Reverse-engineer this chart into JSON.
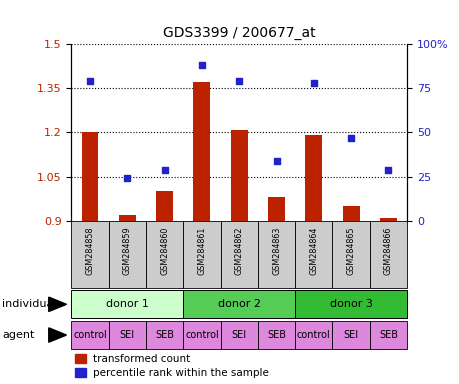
{
  "title": "GDS3399 / 200677_at",
  "samples": [
    "GSM284858",
    "GSM284859",
    "GSM284860",
    "GSM284861",
    "GSM284862",
    "GSM284863",
    "GSM284864",
    "GSM284865",
    "GSM284866"
  ],
  "transformed_count": [
    1.2,
    0.92,
    1.0,
    1.37,
    1.21,
    0.98,
    1.19,
    0.95,
    0.91
  ],
  "percentile_rank": [
    79,
    24,
    29,
    88,
    79,
    34,
    78,
    47,
    29
  ],
  "ylim_left": [
    0.9,
    1.5
  ],
  "ylim_right": [
    0,
    100
  ],
  "yticks_left": [
    0.9,
    1.05,
    1.2,
    1.35,
    1.5
  ],
  "yticks_right": [
    0,
    25,
    50,
    75,
    100
  ],
  "ytick_labels_right": [
    "0",
    "25",
    "50",
    "75",
    "100%"
  ],
  "bar_color": "#bb2200",
  "dot_color": "#2222cc",
  "bar_bottom": 0.9,
  "donors": [
    {
      "label": "donor 1",
      "start": 0,
      "end": 3,
      "color": "#ccffcc"
    },
    {
      "label": "donor 2",
      "start": 3,
      "end": 6,
      "color": "#55cc55"
    },
    {
      "label": "donor 3",
      "start": 6,
      "end": 9,
      "color": "#33bb33"
    }
  ],
  "agents": [
    "control",
    "SEI",
    "SEB",
    "control",
    "SEI",
    "SEB",
    "control",
    "SEI",
    "SEB"
  ],
  "agent_color": "#dd88dd",
  "sample_bg_color": "#cccccc",
  "individual_label": "individual",
  "agent_label": "agent",
  "legend_bar_label": "transformed count",
  "legend_dot_label": "percentile rank within the sample",
  "fig_width": 4.6,
  "fig_height": 3.84,
  "dpi": 100
}
